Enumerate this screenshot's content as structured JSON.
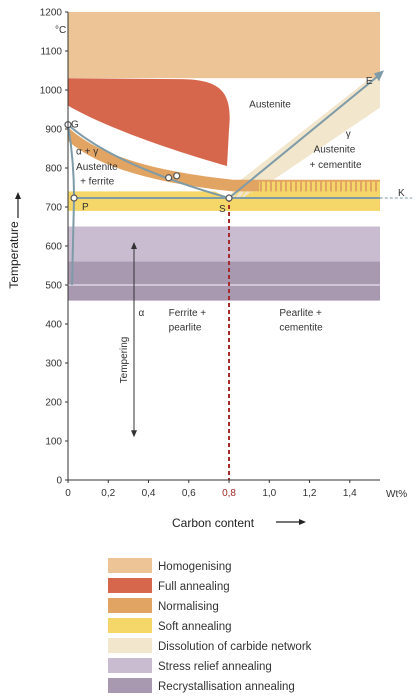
{
  "chart_data": {
    "type": "diagram",
    "xlabel": "Carbon content",
    "ylabel": "Temperature",
    "x_unit": "Wt%",
    "y_unit": "°C",
    "xlim": [
      0,
      1.55
    ],
    "ylim": [
      0,
      1200
    ],
    "x_ticks": [
      {
        "v": 0,
        "label": "0"
      },
      {
        "v": 0.2,
        "label": "0,2"
      },
      {
        "v": 0.4,
        "label": "0,4"
      },
      {
        "v": 0.6,
        "label": "0,6"
      },
      {
        "v": 0.8,
        "label": "0,8"
      },
      {
        "v": 1.0,
        "label": "1,0"
      },
      {
        "v": 1.2,
        "label": "1,2"
      },
      {
        "v": 1.4,
        "label": "1,4"
      }
    ],
    "y_ticks": [
      0,
      100,
      200,
      300,
      400,
      500,
      600,
      700,
      800,
      900,
      1000,
      1100,
      1200
    ],
    "eutectoid_x": 0.8,
    "eutectoid_label": "0,8",
    "points": [
      {
        "name": "G",
        "x": 0.0,
        "y": 911
      },
      {
        "name": "P",
        "x": 0.03,
        "y": 723
      },
      {
        "name": "S",
        "x": 0.8,
        "y": 723
      },
      {
        "name": "K",
        "x": 1.55,
        "y": 723
      },
      {
        "name": "E",
        "x": 1.5,
        "y": 1005
      }
    ],
    "region_labels": [
      {
        "text": "Austenite",
        "x": 0.9,
        "y": 955
      },
      {
        "text": "α + γ",
        "x": 0.04,
        "y": 835
      },
      {
        "text": "Austenite",
        "x": 0.04,
        "y": 795
      },
      {
        "text": "+ ferrite",
        "x": 0.06,
        "y": 758
      },
      {
        "text": "γ",
        "x": 1.38,
        "y": 880
      },
      {
        "text": "Austenite",
        "x": 1.22,
        "y": 840
      },
      {
        "text": "+ cementite",
        "x": 1.2,
        "y": 800
      },
      {
        "text": "α",
        "x": 0.35,
        "y": 420
      },
      {
        "text": "Ferrite +",
        "x": 0.5,
        "y": 420
      },
      {
        "text": "pearlite",
        "x": 0.5,
        "y": 383
      },
      {
        "text": "Pearlite +",
        "x": 1.05,
        "y": 420
      },
      {
        "text": "cementite",
        "x": 1.05,
        "y": 383
      }
    ],
    "tempering_label": "Tempering",
    "tempering_range": [
      120,
      600
    ],
    "series": [
      {
        "name": "Homogenising",
        "color": "#ECC496",
        "y_from": 1030,
        "y_to": 1200
      },
      {
        "name": "Full annealing",
        "color": "#D6674D",
        "upper_curve": [
          [
            0,
            1030
          ],
          [
            0.8,
            1020
          ]
        ],
        "lower_curve": [
          [
            0,
            930
          ],
          [
            0.35,
            840
          ],
          [
            0.6,
            810
          ],
          [
            0.8,
            800
          ]
        ]
      },
      {
        "name": "Normalising",
        "color": "#E2A462",
        "upper_curve": [
          [
            0,
            900
          ],
          [
            0.4,
            800
          ],
          [
            0.8,
            770
          ],
          [
            1.55,
            770
          ]
        ],
        "lower_curve": [
          [
            0,
            860
          ],
          [
            0.4,
            770
          ],
          [
            0.8,
            730
          ],
          [
            1.55,
            740
          ]
        ]
      },
      {
        "name": "Soft annealing",
        "color": "#F4D768",
        "y_from": 690,
        "y_to": 740
      },
      {
        "name": "Dissolution of carbide network",
        "color": "#F2E6CC",
        "upper_curve": [
          [
            0.8,
            770
          ],
          [
            1.5,
            1005
          ]
        ],
        "lower_curve": [
          [
            0.8,
            723
          ],
          [
            1.5,
            860
          ]
        ]
      },
      {
        "name": "Stress relief annealing",
        "color": "#C9BCD1",
        "y_from": 550,
        "y_to": 650
      },
      {
        "name": "Recrystallisation annealing",
        "color": "#A898B0",
        "y_from": 460,
        "y_to": 560
      }
    ]
  }
}
